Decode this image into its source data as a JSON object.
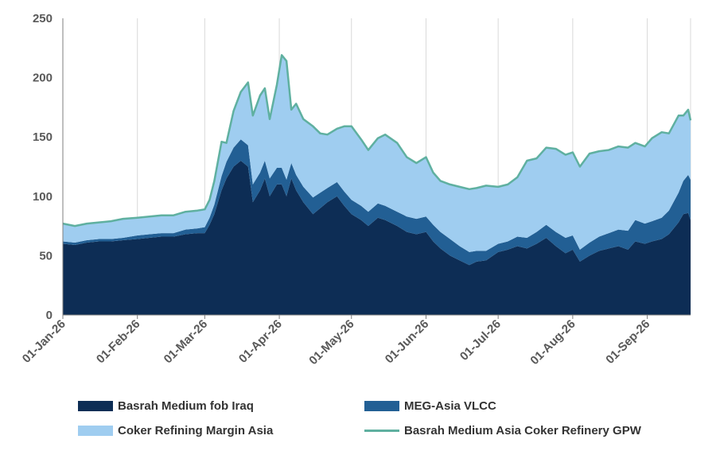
{
  "chart_data": {
    "type": "area",
    "stacked": true,
    "title": "",
    "xlabel": "",
    "ylabel": "",
    "ylim": [
      0,
      250
    ],
    "y_ticks": [
      0,
      50,
      100,
      150,
      200,
      250
    ],
    "grid": "vertical",
    "legend_position": "bottom",
    "x_ticks": [
      {
        "date": "2026-01-01",
        "label": "01-Jan-26"
      },
      {
        "date": "2026-02-01",
        "label": "01-Feb-26"
      },
      {
        "date": "2026-03-01",
        "label": "01-Mar-26"
      },
      {
        "date": "2026-04-01",
        "label": "01-Apr-26"
      },
      {
        "date": "2026-05-01",
        "label": "01-May-26"
      },
      {
        "date": "2026-06-01",
        "label": "01-Jun-26"
      },
      {
        "date": "2026-07-01",
        "label": "01-Jul-26"
      },
      {
        "date": "2026-08-01",
        "label": "01-Aug-26"
      },
      {
        "date": "2026-09-01",
        "label": "01-Sep-26"
      }
    ],
    "x": [
      "2026-01-01",
      "2026-01-06",
      "2026-01-11",
      "2026-01-16",
      "2026-01-21",
      "2026-01-26",
      "2026-02-01",
      "2026-02-06",
      "2026-02-11",
      "2026-02-16",
      "2026-02-21",
      "2026-02-26",
      "2026-03-01",
      "2026-03-03",
      "2026-03-05",
      "2026-03-08",
      "2026-03-10",
      "2026-03-13",
      "2026-03-16",
      "2026-03-19",
      "2026-03-21",
      "2026-03-24",
      "2026-03-26",
      "2026-03-28",
      "2026-03-31",
      "2026-04-02",
      "2026-04-04",
      "2026-04-06",
      "2026-04-08",
      "2026-04-11",
      "2026-04-15",
      "2026-04-18",
      "2026-04-21",
      "2026-04-25",
      "2026-04-28",
      "2026-05-01",
      "2026-05-05",
      "2026-05-08",
      "2026-05-12",
      "2026-05-15",
      "2026-05-20",
      "2026-05-24",
      "2026-05-28",
      "2026-06-01",
      "2026-06-04",
      "2026-06-07",
      "2026-06-11",
      "2026-06-15",
      "2026-06-19",
      "2026-06-22",
      "2026-06-26",
      "2026-07-01",
      "2026-07-05",
      "2026-07-09",
      "2026-07-13",
      "2026-07-17",
      "2026-07-21",
      "2026-07-25",
      "2026-07-29",
      "2026-08-01",
      "2026-08-04",
      "2026-08-08",
      "2026-08-12",
      "2026-08-16",
      "2026-08-20",
      "2026-08-24",
      "2026-08-27",
      "2026-08-31",
      "2026-09-03",
      "2026-09-07",
      "2026-09-10",
      "2026-09-14",
      "2026-09-16",
      "2026-09-18",
      "2026-09-19"
    ],
    "series": [
      {
        "name": "Basrah Medium fob Iraq",
        "color": "#0d2d55",
        "kind": "area",
        "values": [
          60,
          59,
          61,
          62,
          62,
          63,
          64,
          65,
          66,
          66,
          68,
          69,
          69,
          76,
          85,
          105,
          115,
          125,
          130,
          125,
          95,
          105,
          115,
          100,
          110,
          110,
          100,
          115,
          105,
          95,
          85,
          90,
          95,
          100,
          92,
          85,
          80,
          75,
          82,
          80,
          75,
          70,
          68,
          70,
          62,
          56,
          50,
          46,
          42,
          45,
          46,
          53,
          55,
          58,
          56,
          60,
          65,
          58,
          52,
          55,
          45,
          50,
          54,
          56,
          58,
          55,
          62,
          60,
          62,
          64,
          68,
          78,
          85,
          86,
          80
        ]
      },
      {
        "name": "MEG-Asia VLCC",
        "color": "#225f94",
        "kind": "area",
        "values": [
          2,
          2,
          2,
          2,
          2,
          2,
          3,
          3,
          3,
          3,
          4,
          4,
          5,
          6,
          8,
          12,
          14,
          16,
          18,
          18,
          15,
          15,
          15,
          15,
          14,
          14,
          14,
          13,
          13,
          13,
          14,
          13,
          12,
          12,
          12,
          12,
          12,
          12,
          12,
          12,
          12,
          13,
          13,
          13,
          14,
          14,
          14,
          12,
          11,
          9,
          8,
          7,
          7,
          8,
          9,
          10,
          11,
          12,
          13,
          12,
          10,
          11,
          12,
          13,
          14,
          16,
          18,
          17,
          17,
          18,
          20,
          25,
          28,
          32,
          34
        ]
      },
      {
        "name": "Coker Refining Margin Asia",
        "color": "#9fcdf0",
        "kind": "area",
        "values": [
          15,
          14,
          14,
          14,
          15,
          16,
          15,
          15,
          15,
          15,
          15,
          15,
          15,
          15,
          20,
          29,
          16,
          31,
          40,
          53,
          58,
          65,
          61,
          50,
          70,
          95,
          100,
          45,
          60,
          57,
          60,
          50,
          45,
          45,
          55,
          62,
          56,
          52,
          55,
          60,
          58,
          50,
          47,
          50,
          44,
          43,
          46,
          50,
          53,
          53,
          55,
          48,
          48,
          50,
          65,
          62,
          65,
          70,
          70,
          70,
          70,
          75,
          72,
          70,
          70,
          70,
          65,
          65,
          70,
          72,
          65,
          65,
          55,
          55,
          50
        ]
      },
      {
        "name": "Basrah Medium Asia Coker Refinery GPW",
        "color": "#5fb0a0",
        "kind": "line",
        "values": [
          77,
          75,
          77,
          78,
          79,
          81,
          82,
          83,
          84,
          84,
          87,
          88,
          89,
          97,
          113,
          146,
          145,
          172,
          188,
          196,
          168,
          185,
          191,
          165,
          194,
          219,
          214,
          173,
          178,
          165,
          159,
          153,
          152,
          157,
          159,
          159,
          148,
          139,
          149,
          152,
          145,
          133,
          128,
          133,
          120,
          113,
          110,
          108,
          106,
          107,
          109,
          108,
          110,
          116,
          130,
          132,
          141,
          140,
          135,
          137,
          125,
          136,
          138,
          139,
          142,
          141,
          145,
          142,
          149,
          154,
          153,
          168,
          168,
          173,
          164
        ]
      }
    ]
  }
}
